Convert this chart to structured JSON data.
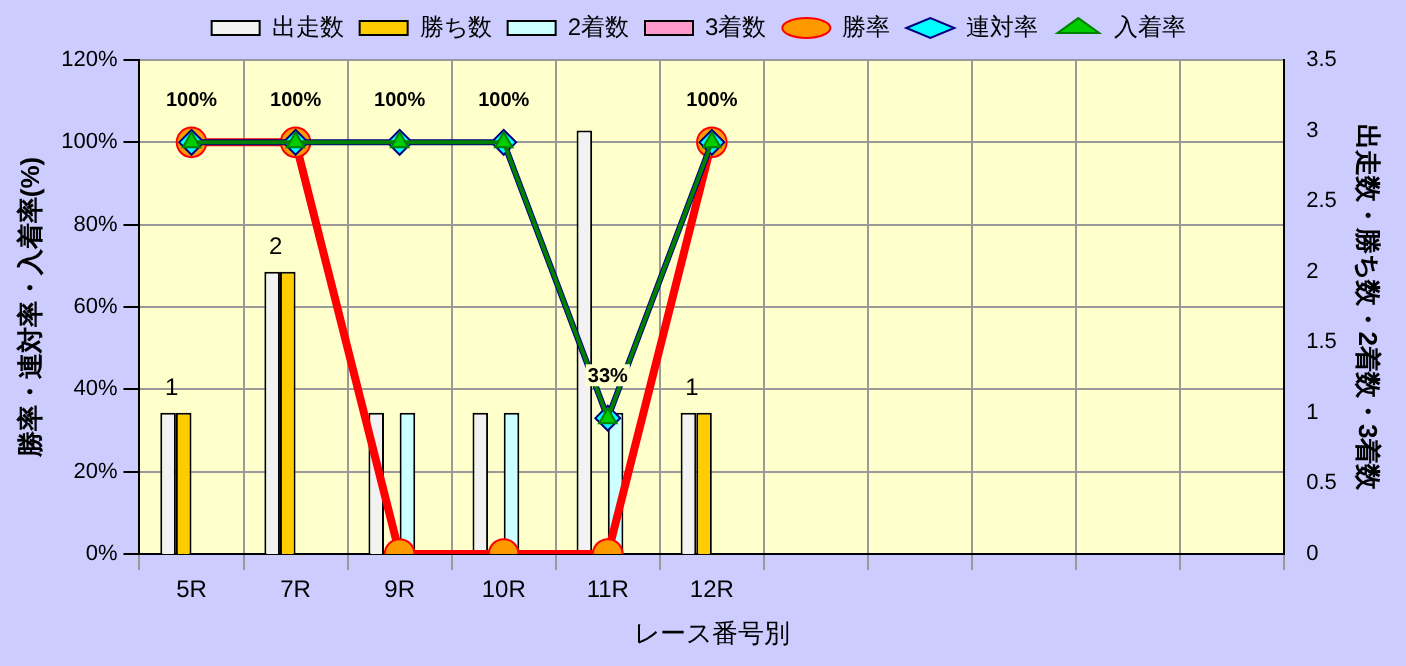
{
  "chart_data": {
    "type": "bar",
    "xlabel": "レース番号別",
    "ylabel": "勝率・連対率・入着率(%)",
    "y2label": "出走数・勝ち数・2着数・3着数",
    "categories": [
      "5R",
      "7R",
      "9R",
      "10R",
      "11R",
      "12R",
      null,
      null,
      null,
      null,
      null
    ],
    "series": [
      {
        "name": "出走数",
        "type": "bar",
        "axis": "y2",
        "color": "#f2f2f2",
        "values": [
          1,
          2,
          1,
          1,
          3,
          1,
          null,
          null,
          null,
          null,
          null
        ]
      },
      {
        "name": "勝ち数",
        "type": "bar",
        "axis": "y2",
        "color": "#ffcc00",
        "values": [
          1,
          2,
          0,
          0,
          0,
          1,
          null,
          null,
          null,
          null,
          null
        ],
        "value_labels": [
          "1",
          "2",
          null,
          null,
          null,
          "1",
          null,
          null,
          null,
          null,
          null
        ]
      },
      {
        "name": "2着数",
        "type": "bar",
        "axis": "y2",
        "color": "#ccffff",
        "values": [
          0,
          0,
          1,
          1,
          1,
          0,
          null,
          null,
          null,
          null,
          null
        ]
      },
      {
        "name": "3着数",
        "type": "bar",
        "axis": "y2",
        "color": "#ff99cc",
        "values": [
          0,
          0,
          0,
          0,
          0,
          0,
          null,
          null,
          null,
          null,
          null
        ]
      },
      {
        "name": "勝率",
        "type": "line",
        "color": "#ff0000",
        "marker": "circle",
        "values": [
          100,
          100,
          0,
          0,
          0,
          100,
          null,
          null,
          null,
          null,
          null
        ]
      },
      {
        "name": "連対率",
        "type": "line",
        "color": "#000080",
        "marker": "diamond",
        "values": [
          100,
          100,
          100,
          100,
          33,
          100,
          null,
          null,
          null,
          null,
          null
        ],
        "value_labels": [
          "100%",
          "100%",
          "100%",
          "100%",
          "33%",
          "100%",
          null,
          null,
          null,
          null,
          null
        ]
      },
      {
        "name": "入着率",
        "type": "line",
        "color": "#008000",
        "marker": "triangle",
        "values": [
          100,
          100,
          100,
          100,
          33,
          100,
          null,
          null,
          null,
          null,
          null
        ]
      }
    ],
    "ylim": [
      0,
      120
    ],
    "yticks": [
      {
        "value": 0,
        "label": "0%"
      },
      {
        "value": 20,
        "label": "20%"
      },
      {
        "value": 40,
        "label": "40%"
      },
      {
        "value": 60,
        "label": "60%"
      },
      {
        "value": 80,
        "label": "80%"
      },
      {
        "value": 100,
        "label": "100%"
      },
      {
        "value": 120,
        "label": "120%"
      }
    ],
    "y2lim": [
      0,
      3.5
    ],
    "y2ticks": [
      0,
      0.5,
      1,
      1.5,
      2,
      2.5,
      3,
      3.5
    ],
    "grid": true,
    "legend": "top"
  }
}
